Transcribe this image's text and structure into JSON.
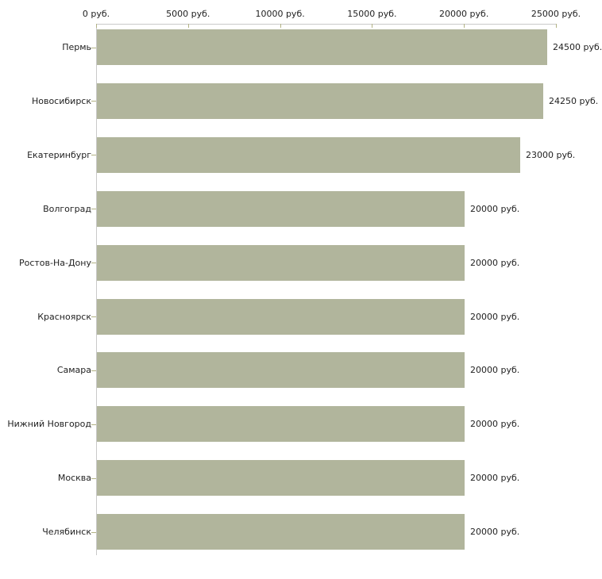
{
  "chart_data": {
    "type": "bar",
    "orientation": "horizontal",
    "title": "",
    "xlabel": "",
    "ylabel": "",
    "unit": "руб.",
    "categories": [
      "Пермь",
      "Новосибирск",
      "Екатеринбург",
      "Волгоград",
      "Ростов-На-Дону",
      "Красноярск",
      "Самара",
      "Нижний Новгород",
      "Москва",
      "Челябинск"
    ],
    "values": [
      24500,
      24250,
      23000,
      20000,
      20000,
      20000,
      20000,
      20000,
      20000,
      20000
    ],
    "value_labels": [
      "24500 руб.",
      "24250 руб.",
      "23000 руб.",
      "20000 руб.",
      "20000 руб.",
      "20000 руб.",
      "20000 руб.",
      "20000 руб.",
      "20000 руб.",
      "20000 руб."
    ],
    "x_axis": {
      "position": "top",
      "range": [
        0,
        25000
      ],
      "ticks": [
        0,
        5000,
        10000,
        15000,
        20000,
        25000
      ],
      "tick_labels": [
        "0 руб.",
        "5000 руб.",
        "10000 руб.",
        "15000 руб.",
        "20000 руб.",
        "25000 руб."
      ]
    },
    "grid": false,
    "legend": false,
    "colors": {
      "bar": "#b1b59c",
      "axis_line": "#c9c9c9",
      "tick": "#b2b284",
      "text": "#222222",
      "background": "#ffffff"
    }
  }
}
